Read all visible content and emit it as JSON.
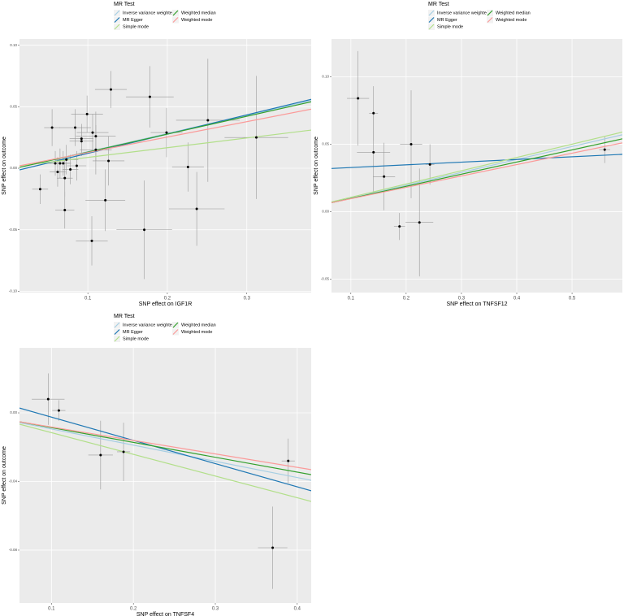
{
  "chart_data": [
    {
      "type": "scatter",
      "xlabel": "SNP effect on IGF1R",
      "ylabel": "SNP effect on outcome",
      "legend_title": "MR Test",
      "xlim": [
        0.014,
        0.381
      ],
      "xticks": [
        0.1,
        0.2,
        0.3
      ],
      "ylim": [
        -0.101,
        0.105
      ],
      "yticks": [
        {
          "value": -0.1,
          "label": "-0.10"
        },
        {
          "value": -0.05,
          "label": "-0.05"
        },
        {
          "value": 0,
          "label": "0.00"
        },
        {
          "value": 0.05,
          "label": "0.05"
        },
        {
          "value": 0.1,
          "label": "0.10"
        }
      ],
      "grid": true,
      "series": [
        {
          "name": "Inverse variance weighted",
          "color": "#a6cee3",
          "x": [
            0.014,
            0.381
          ],
          "values": [
            0.0007,
            0.055
          ]
        },
        {
          "name": "MR Egger",
          "color": "#1f78b4",
          "x": [
            0.014,
            0.381
          ],
          "values": [
            -0.0013,
            0.056
          ]
        },
        {
          "name": "Simple mode",
          "color": "#b2df8a",
          "x": [
            0.014,
            0.381
          ],
          "values": [
            0.002,
            0.031
          ]
        },
        {
          "name": "Weighted median",
          "color": "#33a02c",
          "x": [
            0.014,
            0.381
          ],
          "values": [
            0.0007,
            0.054
          ]
        },
        {
          "name": "Weighted mode",
          "color": "#fb9a99",
          "x": [
            0.014,
            0.381
          ],
          "values": [
            0.002,
            0.048
          ]
        }
      ],
      "points": {
        "x": [
          0.04,
          0.055,
          0.059,
          0.062,
          0.065,
          0.069,
          0.071,
          0.071,
          0.073,
          0.078,
          0.084,
          0.086,
          0.092,
          0.092,
          0.099,
          0.105,
          0.106,
          0.11,
          0.11,
          0.122,
          0.126,
          0.129,
          0.171,
          0.178,
          0.199,
          0.226,
          0.237,
          0.251,
          0.312
        ],
        "values": [
          -0.017,
          0.033,
          0.004,
          -0.003,
          0.004,
          0.004,
          -0.008,
          -0.034,
          0.007,
          -0.001,
          0.033,
          0.002,
          0.024,
          0.022,
          0.044,
          -0.059,
          0.029,
          0.015,
          0.026,
          -0.026,
          0.006,
          0.064,
          -0.05,
          0.058,
          0.029,
          0.001,
          -0.033,
          0.039,
          0.025
        ],
        "xerr": [
          0.01,
          0.01,
          0.012,
          0.01,
          0.012,
          0.01,
          0.01,
          0.012,
          0.015,
          0.01,
          0.02,
          0.012,
          0.015,
          0.015,
          0.02,
          0.02,
          0.02,
          0.02,
          0.025,
          0.025,
          0.02,
          0.02,
          0.035,
          0.03,
          0.02,
          0.02,
          0.035,
          0.04,
          0.04
        ],
        "yerr": [
          0.012,
          0.015,
          0.01,
          0.012,
          0.012,
          0.01,
          0.015,
          0.015,
          0.012,
          0.012,
          0.015,
          0.012,
          0.012,
          0.012,
          0.015,
          0.02,
          0.015,
          0.02,
          0.02,
          0.025,
          0.02,
          0.015,
          0.04,
          0.025,
          0.02,
          0.02,
          0.03,
          0.05,
          0.05
        ]
      }
    },
    {
      "type": "scatter",
      "xlabel": "SNP effect on TNFSF12",
      "ylabel": "SNP effect on outcome",
      "legend_title": "MR Test",
      "xlim": [
        0.065,
        0.591
      ],
      "xticks": [
        0.1,
        0.2,
        0.3,
        0.4,
        0.5
      ],
      "ylim": [
        -0.06,
        0.128
      ],
      "yticks": [
        {
          "value": -0.05,
          "label": "-0.05"
        },
        {
          "value": 0,
          "label": "0.00"
        },
        {
          "value": 0.05,
          "label": "0.05"
        },
        {
          "value": 0.1,
          "label": "0.10"
        }
      ],
      "grid": true,
      "series": [
        {
          "name": "Inverse variance weighted",
          "color": "#a6cee3",
          "x": [
            0.065,
            0.591
          ],
          "values": [
            0.0066,
            0.057
          ]
        },
        {
          "name": "MR Egger",
          "color": "#1f78b4",
          "x": [
            0.065,
            0.591
          ],
          "values": [
            0.032,
            0.0425
          ]
        },
        {
          "name": "Simple mode",
          "color": "#b2df8a",
          "x": [
            0.065,
            0.591
          ],
          "values": [
            0.0072,
            0.059
          ]
        },
        {
          "name": "Weighted median",
          "color": "#33a02c",
          "x": [
            0.065,
            0.591
          ],
          "values": [
            0.0066,
            0.054
          ]
        },
        {
          "name": "Weighted mode",
          "color": "#fb9a99",
          "x": [
            0.065,
            0.591
          ],
          "values": [
            0.0066,
            0.051
          ]
        }
      ],
      "points": {
        "x": [
          0.113,
          0.141,
          0.141,
          0.16,
          0.188,
          0.209,
          0.224,
          0.243,
          0.559
        ],
        "values": [
          0.084,
          0.073,
          0.044,
          0.026,
          -0.011,
          0.05,
          -0.008,
          0.035,
          0.046
        ],
        "xerr": [
          0.02,
          0.008,
          0.03,
          0.02,
          0.01,
          0.02,
          0.025,
          0.008,
          0.01
        ],
        "yerr": [
          0.035,
          0.02,
          0.03,
          0.025,
          0.01,
          0.04,
          0.04,
          0.015,
          0.01
        ]
      }
    },
    {
      "type": "scatter",
      "xlabel": "SNP effect on TNFSF4",
      "ylabel": "SNP effect on outcome",
      "legend_title": "MR Test",
      "xlim": [
        0.061,
        0.417
      ],
      "xticks": [
        0.1,
        0.2,
        0.3,
        0.4
      ],
      "ylim": [
        -0.1108,
        0.0379
      ],
      "yticks": [
        {
          "value": -0.08,
          "label": "-0.08"
        },
        {
          "value": -0.04,
          "label": "-0.04"
        },
        {
          "value": 0,
          "label": "0.00"
        }
      ],
      "grid": true,
      "series": [
        {
          "name": "Inverse variance weighted",
          "color": "#a6cee3",
          "x": [
            0.061,
            0.417
          ],
          "values": [
            -0.0057,
            -0.0393
          ]
        },
        {
          "name": "MR Egger",
          "color": "#1f78b4",
          "x": [
            0.061,
            0.417
          ],
          "values": [
            0.0028,
            -0.0454
          ]
        },
        {
          "name": "Simple mode",
          "color": "#b2df8a",
          "x": [
            0.061,
            0.417
          ],
          "values": [
            -0.0066,
            -0.0516
          ]
        },
        {
          "name": "Weighted median",
          "color": "#33a02c",
          "x": [
            0.061,
            0.417
          ],
          "values": [
            -0.0052,
            -0.036
          ]
        },
        {
          "name": "Weighted mode",
          "color": "#fb9a99",
          "x": [
            0.061,
            0.417
          ],
          "values": [
            -0.0052,
            -0.0331
          ]
        }
      ],
      "points": {
        "x": [
          0.096,
          0.109,
          0.16,
          0.188,
          0.389,
          0.37
        ],
        "values": [
          0.008,
          0.0014,
          -0.0246,
          -0.0227,
          -0.028,
          -0.0786
        ],
        "xerr": [
          0.02,
          0.008,
          0.015,
          0.008,
          0.008,
          0.018
        ],
        "yerr": [
          0.015,
          0.006,
          0.02,
          0.017,
          0.013,
          0.024
        ]
      }
    }
  ]
}
